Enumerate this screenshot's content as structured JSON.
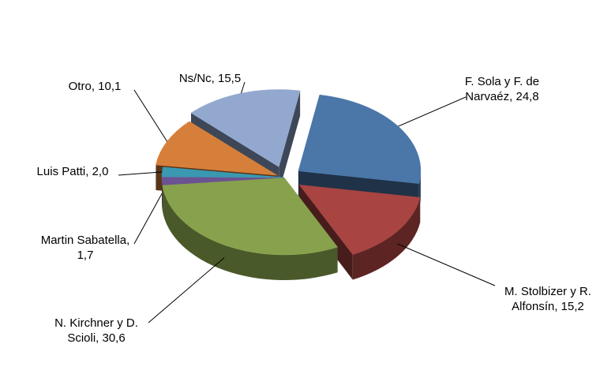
{
  "chart_data": {
    "type": "pie",
    "style": "3d-exploded",
    "title": "",
    "legend": "none",
    "labels": [
      "F. Sola y F. de Narvaéz",
      "M. Stolbizer y R. Alfonsín",
      "N. Kirchner y D. Scioli",
      "Martin Sabatella",
      "Luis Patti",
      "Otro",
      "Ns/Nc"
    ],
    "values": [
      24.8,
      15.2,
      30.6,
      1.7,
      2.0,
      10.1,
      15.5
    ],
    "data_labels": [
      [
        "F. Sola y F. de",
        "Narvaéz, 24,8"
      ],
      [
        "M. Stolbizer y R.",
        "Alfonsín, 15,2"
      ],
      [
        "N. Kirchner y D.",
        "Scioli, 30,6"
      ],
      [
        "Martin Sabatella,",
        "1,7"
      ],
      [
        "Luis Patti, 2,0"
      ],
      [
        "Otro, 10,1"
      ],
      [
        "Ns/Nc, 15,5"
      ]
    ],
    "colors": [
      "#4A76A8",
      "#A84442",
      "#87A14C",
      "#6B5290",
      "#3A98B0",
      "#D67F3A",
      "#93A8CE"
    ]
  }
}
